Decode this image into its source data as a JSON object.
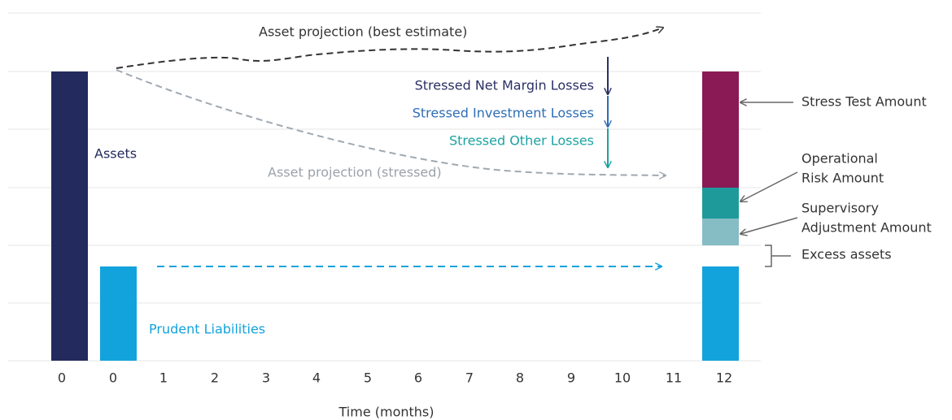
{
  "bar_labels": {
    "assets": "Assets",
    "prudent_liabilities": "Prudent Liabilities"
  },
  "projections": {
    "best_estimate": "Asset projection (best estimate)",
    "stressed": "Asset projection (stressed)"
  },
  "losses": [
    "Stressed Net Margin Losses",
    "Stressed Investment Losses",
    "Stressed Other Losses"
  ],
  "components": {
    "stress_test": [
      "Stress Test Amount"
    ],
    "operational": [
      "Operational",
      "Risk Amount"
    ],
    "supervisory": [
      "Supervisory",
      "Adjustment Amount"
    ],
    "excess": [
      "Excess assets"
    ]
  },
  "x_axis": {
    "labels": [
      "0",
      "0",
      "1",
      "2",
      "3",
      "4",
      "5",
      "6",
      "7",
      "8",
      "9",
      "10",
      "11",
      "12"
    ],
    "title": "Time (months)"
  }
}
